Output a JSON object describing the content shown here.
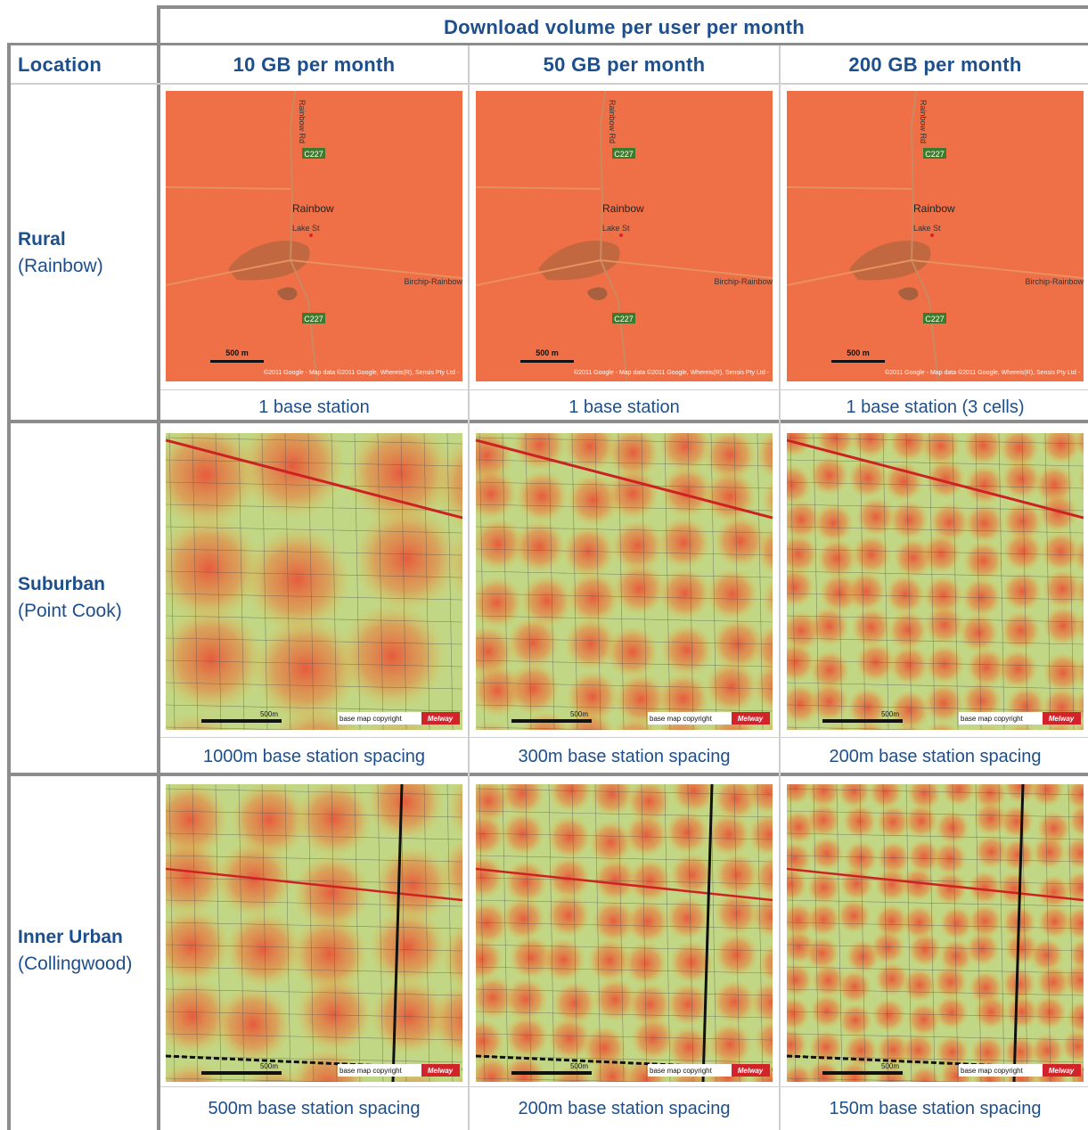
{
  "header": {
    "span_title": "Download volume per user per month",
    "location_label": "Location",
    "columns": [
      "10 GB per month",
      "50 GB per month",
      "200 GB per month"
    ]
  },
  "rows": [
    {
      "name": "Rural",
      "place": "(Rainbow)",
      "captions": [
        "1 base station",
        "1 base station",
        "1 base station (3 cells)"
      ]
    },
    {
      "name": "Suburban",
      "place": "(Point Cook)",
      "captions": [
        "1000m base station spacing",
        "300m base station spacing",
        "200m base station spacing"
      ]
    },
    {
      "name": "Inner Urban",
      "place": "(Collingwood)",
      "captions": [
        "500m base station spacing",
        "200m base station spacing",
        "150m base station spacing"
      ]
    }
  ],
  "map_labels": {
    "rural": {
      "road": "Rainbow Rd",
      "route": "C227",
      "town": "Rainbow",
      "street": "Lake St",
      "highway": "Birchip-Rainbow",
      "scale": "500 m",
      "credit": "©2011 Google - Map data ©2011 Google, Whereis(R), Sensis Pty Ltd -"
    },
    "metro": {
      "copyright": "base map copyright",
      "brand": "Melway",
      "scale": "500m"
    }
  }
}
